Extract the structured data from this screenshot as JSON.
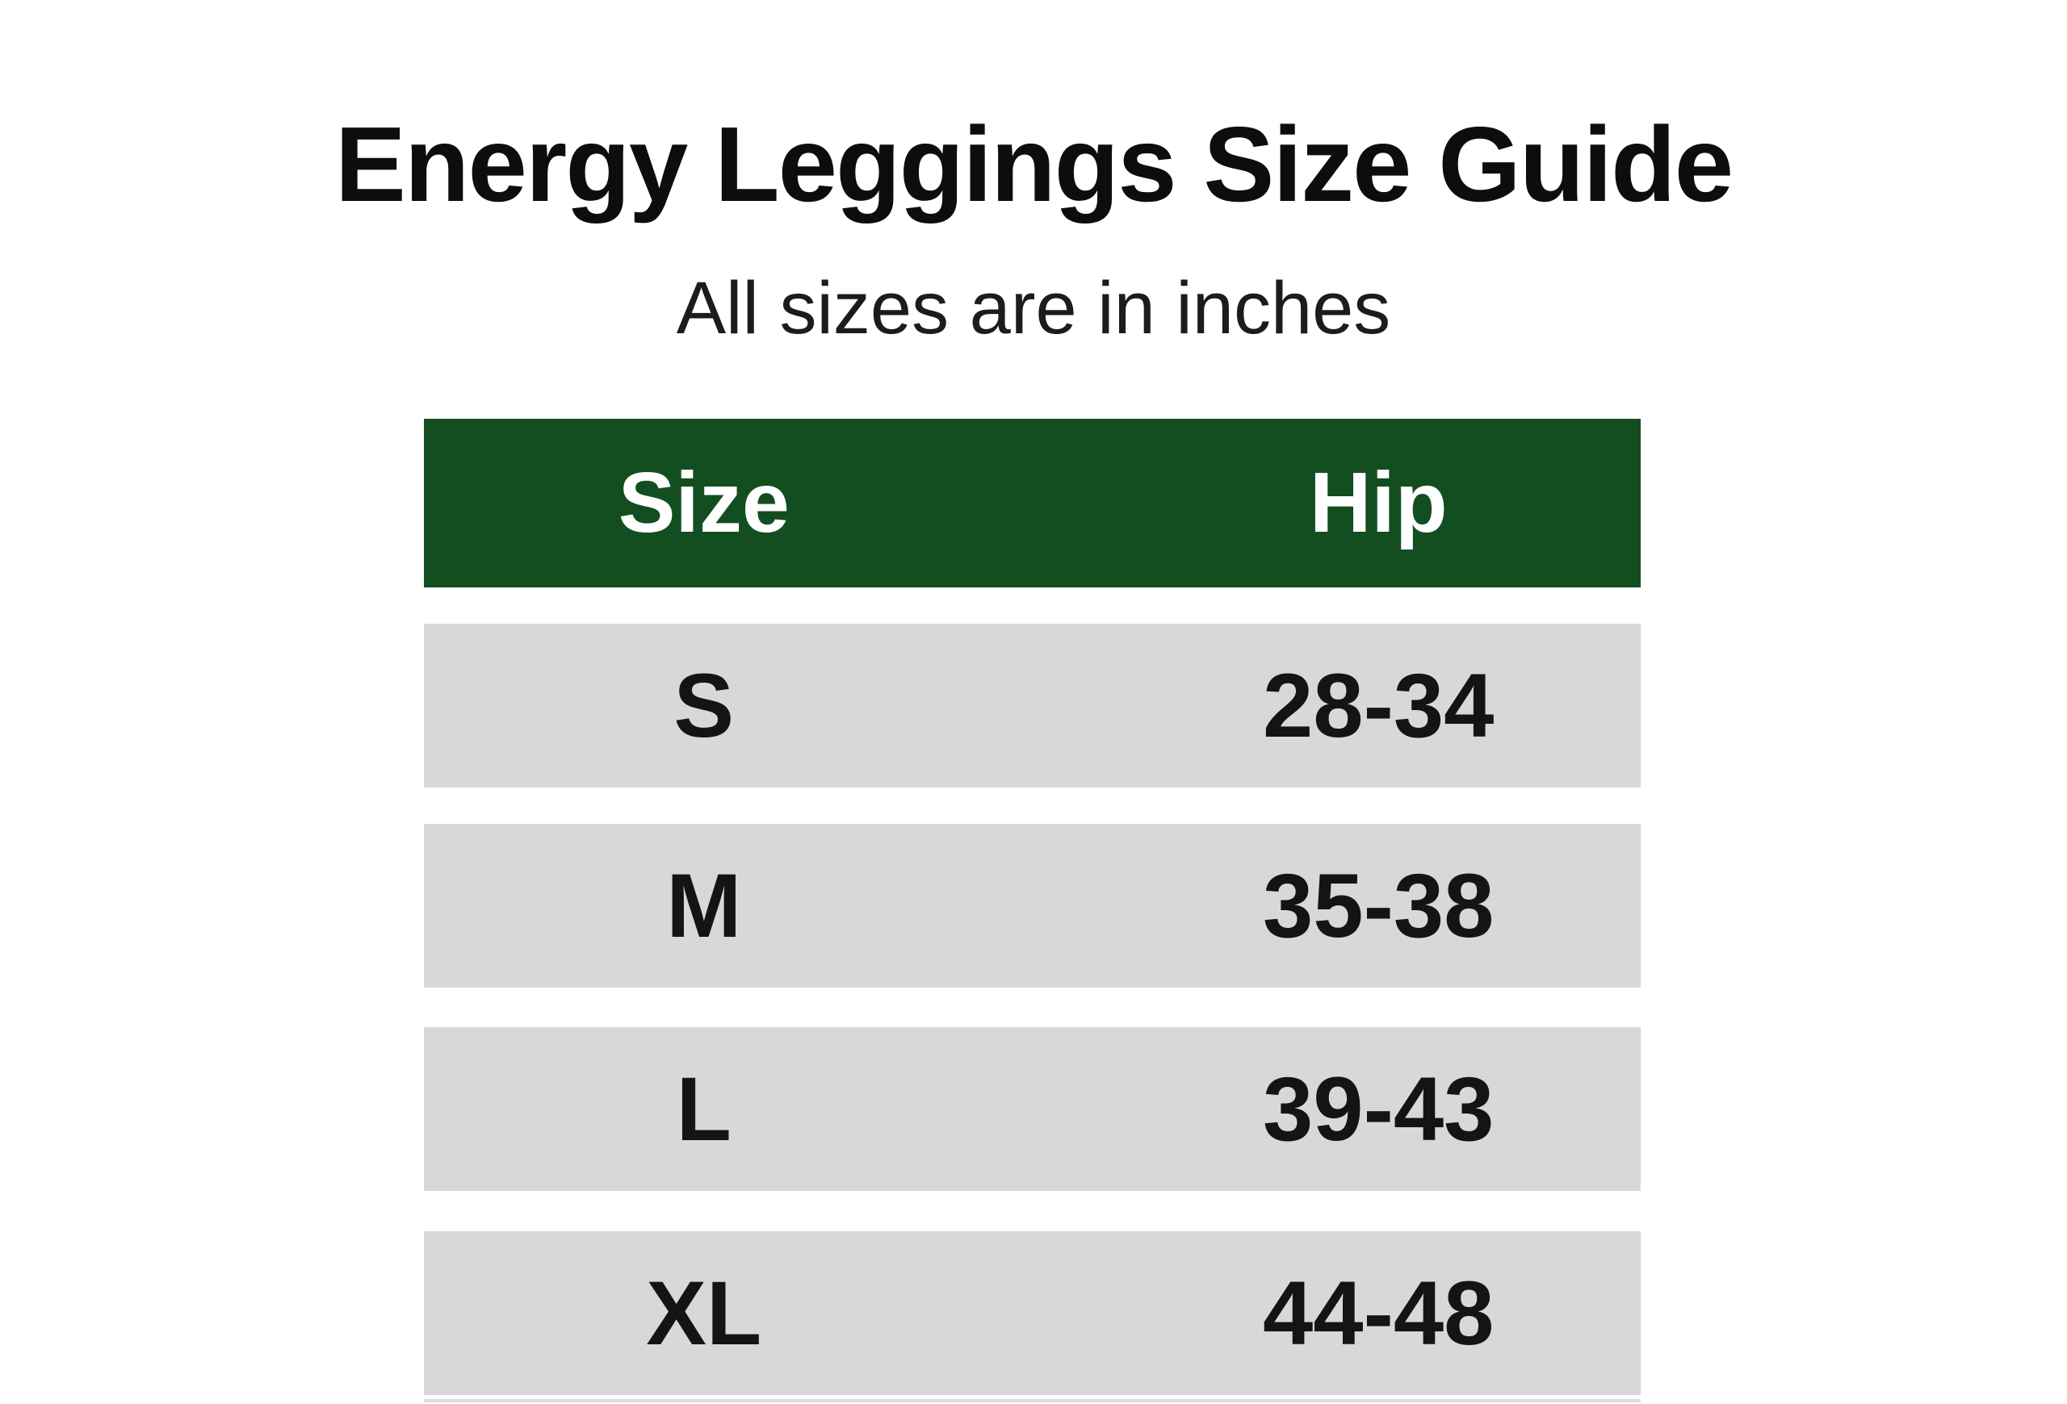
{
  "page": {
    "title": "Energy Leggings Size Guide",
    "subtitle": "All sizes are in inches"
  },
  "colors": {
    "page_bg": "#ffffff",
    "header_bg": "#134e20",
    "header_text": "#ffffff",
    "row_bg": "#d8d8d8",
    "text": "#141414"
  },
  "table": {
    "headers": [
      {
        "label": "Size"
      },
      {
        "label": "Hip"
      }
    ],
    "rows": [
      {
        "size": "S",
        "hip": "28-34"
      },
      {
        "size": "M",
        "hip": "35-38"
      },
      {
        "size": "L",
        "hip": "39-43"
      },
      {
        "size": "XL",
        "hip": "44-48"
      }
    ]
  },
  "chart_data": {
    "type": "table",
    "title": "Energy Leggings Size Guide",
    "subtitle": "All sizes are in inches",
    "units": "inches",
    "columns": [
      "Size",
      "Hip"
    ],
    "rows": [
      [
        "S",
        "28-34"
      ],
      [
        "M",
        "35-38"
      ],
      [
        "L",
        "39-43"
      ],
      [
        "XL",
        "44-48"
      ]
    ]
  }
}
